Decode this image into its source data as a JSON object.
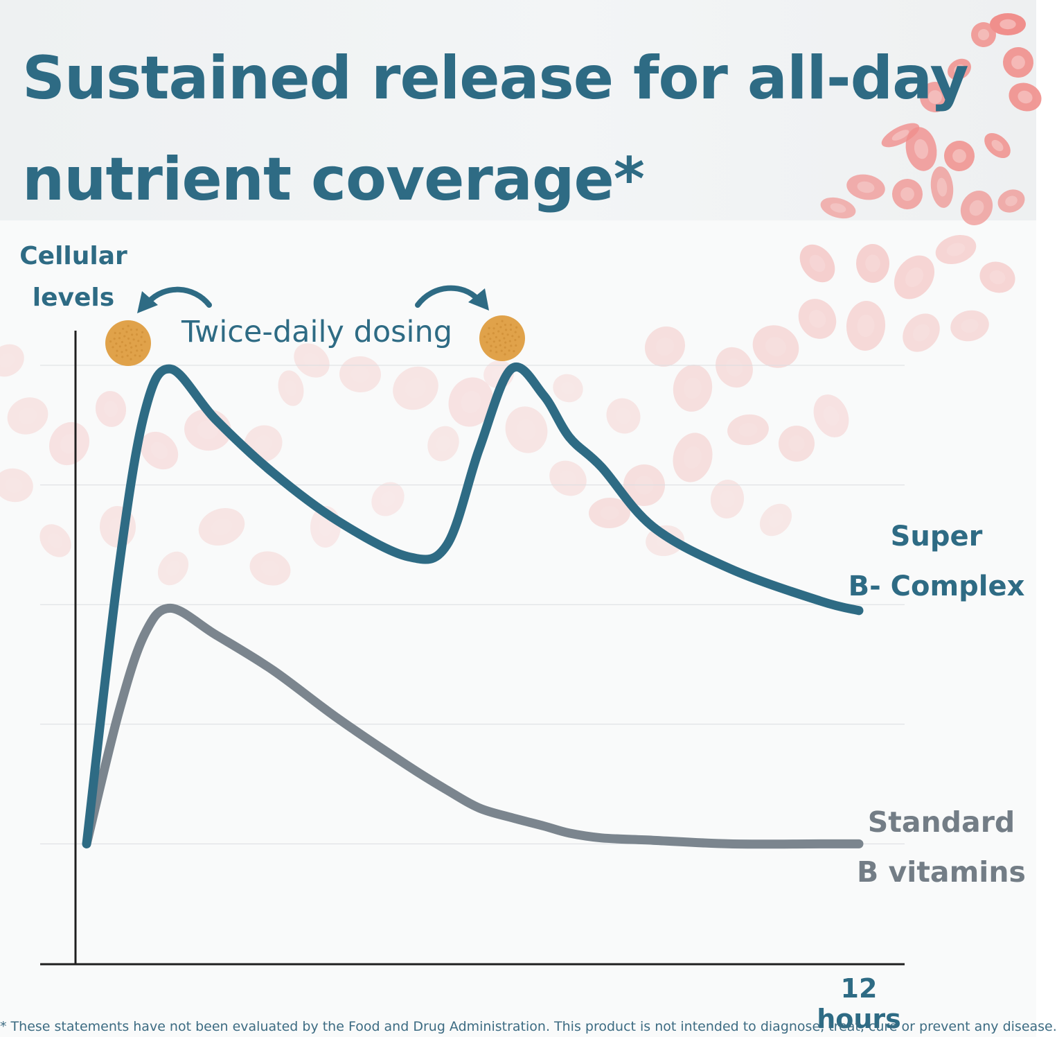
{
  "title": {
    "line1": "Sustained release for all-day",
    "line2": "nutrient coverage*"
  },
  "annotation": {
    "dosing": "Twice-daily dosing"
  },
  "colors": {
    "primary": "#2e6b84",
    "standard": "#7b858e",
    "tablet": "#e0a24a",
    "blood_cells": "#f08f8c"
  },
  "icons": [
    "tablet-icon",
    "arrow-left-icon",
    "arrow-right-icon"
  ],
  "disclaimer": "* These statements have not been evaluated by the Food and Drug Administration. This product is not intended to diagnose, treat, cure or prevent any disease.",
  "chart_data": {
    "type": "line",
    "title": "Sustained release for all-day nutrient coverage*",
    "xlabel": "12 hours",
    "ylabel_lines": [
      "Cellular",
      "levels"
    ],
    "xlim": [
      0,
      12
    ],
    "ylim": [
      0,
      5
    ],
    "grid": true,
    "legend": "labels at right end of each line",
    "x": [
      0,
      0.5,
      0.9,
      1.3,
      2.0,
      2.9,
      3.9,
      5.0,
      5.6,
      6.1,
      6.6,
      7.1,
      7.5,
      8.0,
      8.8,
      10.0,
      11.4,
      12.0
    ],
    "series": [
      {
        "name_lines": [
          "Super",
          "B- Complex"
        ],
        "color": "#2e6b84",
        "values": [
          1.0,
          3.3,
          4.6,
          4.97,
          4.55,
          4.1,
          3.7,
          3.4,
          3.5,
          4.3,
          4.97,
          4.75,
          4.4,
          4.15,
          3.65,
          3.3,
          3.03,
          2.95
        ]
      },
      {
        "name_lines": [
          "Standard",
          "B vitamins"
        ],
        "color": "#7b858e",
        "values": [
          1.0,
          2.1,
          2.75,
          2.97,
          2.75,
          2.45,
          2.05,
          1.65,
          1.45,
          1.3,
          1.22,
          1.15,
          1.09,
          1.05,
          1.03,
          1.0,
          1.0,
          1.0
        ]
      }
    ]
  }
}
